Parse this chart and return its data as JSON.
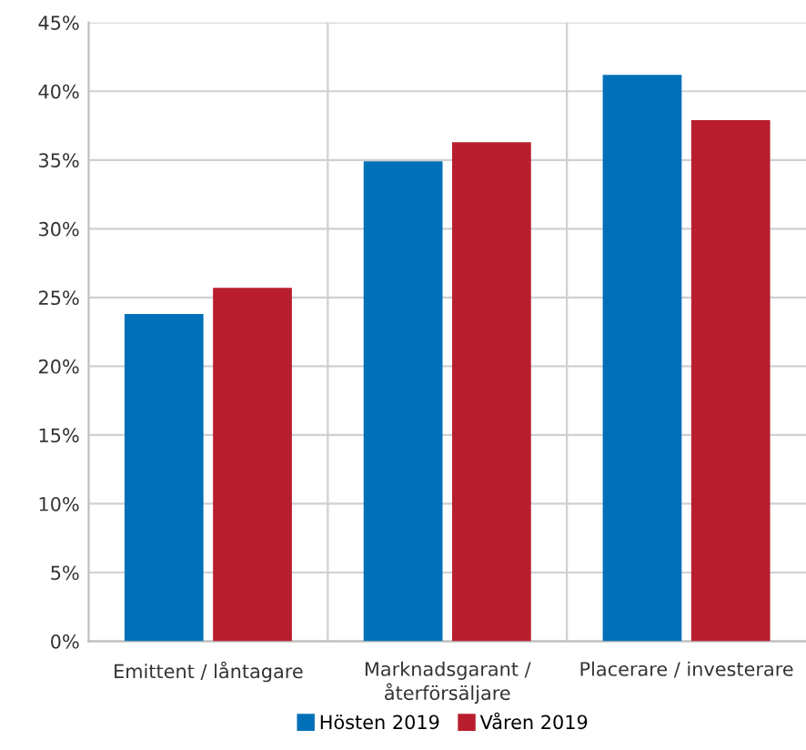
{
  "chart_data": {
    "type": "bar",
    "categories": [
      "Emittent / låntagare",
      "Marknadsgarant /\nåterförsäljare",
      "Placerare / investerare"
    ],
    "series": [
      {
        "name": "Hösten 2019",
        "color": "#0070b8",
        "values": [
          23.8,
          34.9,
          41.2
        ]
      },
      {
        "name": "Våren 2019",
        "color": "#b81e2d",
        "values": [
          25.7,
          36.3,
          37.9
        ]
      }
    ],
    "ylim": [
      0,
      45
    ],
    "yticks": [
      {
        "value": 0,
        "label": "0%"
      },
      {
        "value": 5,
        "label": "5%"
      },
      {
        "value": 10,
        "label": "10%"
      },
      {
        "value": 15,
        "label": "15%"
      },
      {
        "value": 20,
        "label": "20%"
      },
      {
        "value": 25,
        "label": "25%"
      },
      {
        "value": 30,
        "label": "30%"
      },
      {
        "value": 35,
        "label": "35%"
      },
      {
        "value": 40,
        "label": "40%"
      },
      {
        "value": 45,
        "label": "45%"
      }
    ],
    "grid": true,
    "legend": "bottom"
  }
}
